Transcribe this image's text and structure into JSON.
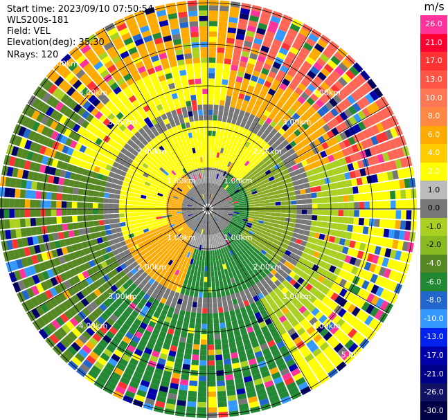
{
  "header": {
    "start_time": "Start time: 2023/09/10 07:50:54",
    "instrument": "WLS200s-181",
    "field": "Field: VEL",
    "elevation": "Elevation(deg): 35.30",
    "nrays": "NRays: 120"
  },
  "colorbar": {
    "unit": "m/s",
    "levels": [
      {
        "label": "26.0",
        "color": "#ff3399"
      },
      {
        "label": "21.0",
        "color": "#ff0033"
      },
      {
        "label": "17.0",
        "color": "#ff3333"
      },
      {
        "label": "13.0",
        "color": "#ff5544"
      },
      {
        "label": "10.0",
        "color": "#ff7755"
      },
      {
        "label": "8.0",
        "color": "#ff8844"
      },
      {
        "label": "6.0",
        "color": "#ffaa00"
      },
      {
        "label": "4.0",
        "color": "#ffcc00"
      },
      {
        "label": "2.0",
        "color": "#ffff00"
      },
      {
        "label": "1.0",
        "color": "#bbbbbb"
      },
      {
        "label": "0.0",
        "color": "#777777"
      },
      {
        "label": "-1.0",
        "color": "#aad022"
      },
      {
        "label": "-2.0",
        "color": "#88bb22"
      },
      {
        "label": "-4.0",
        "color": "#558822"
      },
      {
        "label": "-6.0",
        "color": "#228833"
      },
      {
        "label": "-8.0",
        "color": "#2266cc"
      },
      {
        "label": "-10.0",
        "color": "#3399ff"
      },
      {
        "label": "-13.0",
        "color": "#0022ee"
      },
      {
        "label": "-17.0",
        "color": "#0000aa"
      },
      {
        "label": "-21.0",
        "color": "#000088"
      },
      {
        "label": "-26.0",
        "color": "#111166"
      },
      {
        "label": "-30.0",
        "color": "#000044"
      }
    ]
  },
  "rings": [
    {
      "label": "1.00km"
    },
    {
      "label": "2.00km"
    },
    {
      "label": "3.00km"
    },
    {
      "label": "4.00km"
    },
    {
      "label": "5.00km"
    }
  ]
}
